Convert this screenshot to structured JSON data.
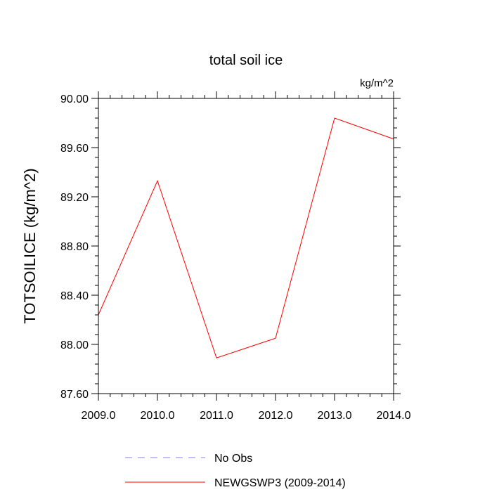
{
  "chart_data": {
    "type": "line",
    "title": "total soil ice",
    "units": "kg/m^2",
    "ylabel": "TOTSOILICE  (kg/m^2)",
    "xlabel": "",
    "xlim": [
      2009.0,
      2014.0
    ],
    "ylim": [
      87.6,
      90.0
    ],
    "x_ticks": [
      "2009.0",
      "2010.0",
      "2011.0",
      "2012.0",
      "2013.0",
      "2014.0"
    ],
    "y_ticks": [
      "87.60",
      "88.00",
      "88.40",
      "88.80",
      "89.20",
      "89.60",
      "90.00"
    ],
    "grid": false,
    "legend_position": "bottom",
    "series": [
      {
        "name": "No Obs",
        "color": "#8080ff",
        "style": "dashed",
        "x": [],
        "y": []
      },
      {
        "name": "NEWGSWP3 (2009-2014)",
        "color": "#ff0000",
        "style": "solid",
        "x": [
          2009.0,
          2010.0,
          2011.0,
          2012.0,
          2013.0,
          2014.0
        ],
        "y": [
          88.24,
          89.33,
          87.89,
          88.05,
          89.84,
          89.67
        ]
      }
    ]
  }
}
